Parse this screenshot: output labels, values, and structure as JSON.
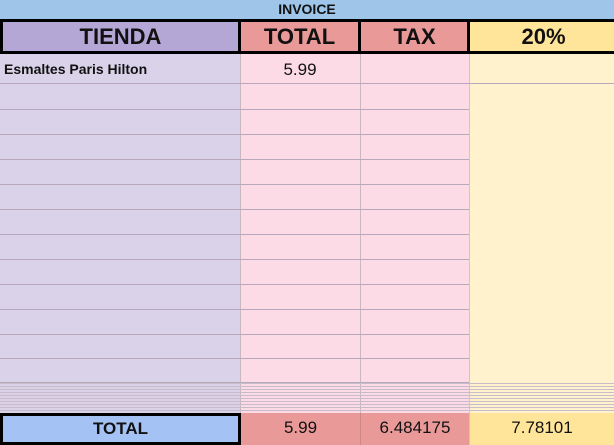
{
  "sheet_title": "INVOICE",
  "headers": {
    "store": "TIENDA",
    "total": "TOTAL",
    "tax": "TAX",
    "pct": "20%"
  },
  "rows": [
    {
      "store": "Esmaltes Paris Hilton",
      "total": "5.99",
      "tax": "",
      "pct": ""
    }
  ],
  "totals": {
    "label": "TOTAL",
    "total": "5.99",
    "tax": "6.484175",
    "pct": "7.78101"
  },
  "colors": {
    "title_bg": "#9fc5e8",
    "store_header": "#b4a7d6",
    "amount_header": "#ea9999",
    "pct_header": "#ffe599",
    "total_label_bg": "#a4c2f4"
  }
}
